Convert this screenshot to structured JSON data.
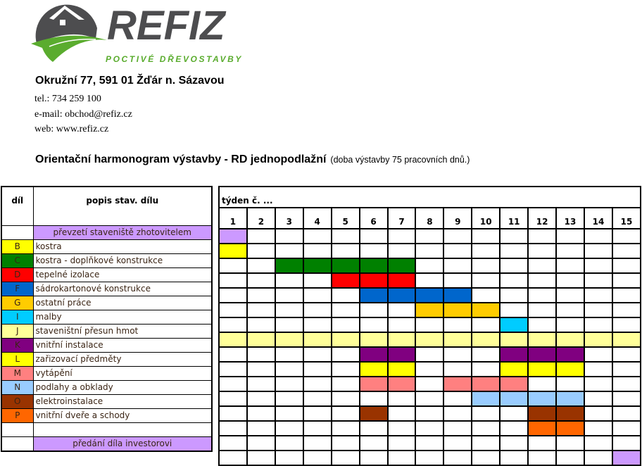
{
  "company": {
    "logo_text": "REFIZ",
    "tagline": "POCTIVÉ DŘEVOSTAVBY",
    "address": "Okružní 77, 591 01  Žďár n. Sázavou",
    "tel": "tel.: 734 259 100",
    "email": "e-mail:  obchod@refiz.cz",
    "web": "web: www.refiz.cz",
    "logo_colors": {
      "grey": "#4d4d4f",
      "green": "#5aac2e"
    }
  },
  "title": "Orientační harmonogram výstavby - RD jednopodlažní",
  "subtitle": "(doba výstavby 75 pracovních dnů.)",
  "table": {
    "col_dil": "díl",
    "col_popis": "popis stav. dílu",
    "col_weeks": "týden č. ...",
    "weeks": [
      "1",
      "2",
      "3",
      "4",
      "5",
      "6",
      "7",
      "8",
      "9",
      "10",
      "11",
      "12",
      "13",
      "14",
      "15"
    ],
    "rows": [
      {
        "letter": "",
        "label": "převzetí staveniště zhotovitelem",
        "color": "#cc99ff",
        "milestone": true,
        "weeks": [
          1
        ]
      },
      {
        "letter": "B",
        "label": "kostra",
        "color": "#ffff00",
        "weeks": [
          1
        ]
      },
      {
        "letter": "C",
        "label": "kostra - doplňkové konstrukce",
        "color": "#008000",
        "weeks": [
          3,
          4,
          5,
          6,
          7
        ]
      },
      {
        "letter": "D",
        "label": "tepelné izolace",
        "color": "#ff0000",
        "weeks": [
          5,
          6,
          7
        ]
      },
      {
        "letter": "F",
        "label": "sádrokartonové konstrukce",
        "color": "#0066cc",
        "weeks": [
          6,
          7,
          8,
          9
        ]
      },
      {
        "letter": "G",
        "label": "ostatní práce",
        "color": "#ffcc00",
        "weeks": [
          8,
          9,
          10
        ]
      },
      {
        "letter": "I",
        "label": "malby",
        "color": "#00ccff",
        "weeks": [
          11
        ]
      },
      {
        "letter": "J",
        "label": "staveništní přesun hmot",
        "color": "#ffff99",
        "weeks": [
          1,
          2,
          3,
          4,
          5,
          6,
          7,
          8,
          9,
          10,
          11,
          12,
          13,
          14,
          15
        ]
      },
      {
        "letter": "K",
        "label": "vnitřní instalace",
        "color": "#800080",
        "weeks": [
          6,
          7,
          11,
          12,
          13
        ]
      },
      {
        "letter": "L",
        "label": "zařizovací předměty",
        "color": "#ffff00",
        "weeks": [
          6,
          7,
          11,
          12,
          13
        ]
      },
      {
        "letter": "M",
        "label": "vytápění",
        "color": "#ff8080",
        "weeks": [
          6,
          7,
          9,
          10,
          11
        ]
      },
      {
        "letter": "N",
        "label": "podlahy a obklady",
        "color": "#99ccff",
        "weeks": [
          10,
          11,
          12,
          13
        ]
      },
      {
        "letter": "O",
        "label": "elektroinstalace",
        "color": "#993300",
        "weeks": [
          6,
          12,
          13
        ]
      },
      {
        "letter": "P",
        "label": "vnitřní dveře a schody",
        "color": "#ff6600",
        "weeks": [
          12,
          13
        ]
      },
      {
        "letter": "",
        "label": "",
        "color": "",
        "weeks": []
      },
      {
        "letter": "",
        "label": "předání díla investorovi",
        "color": "#cc99ff",
        "milestone": true,
        "weeks": [
          15
        ]
      }
    ]
  }
}
